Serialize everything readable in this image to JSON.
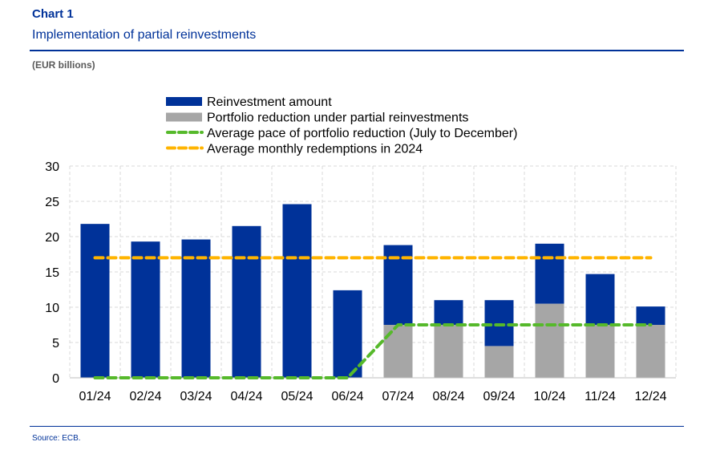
{
  "header": {
    "chart_label": "Chart 1",
    "title": "Implementation of partial reinvestments",
    "unit": "(EUR billions)"
  },
  "footer": {
    "source": "Source: ECB."
  },
  "colors": {
    "reinvestment": "#003299",
    "portfolio": "#A6A6A6",
    "avg_pace": "#56B92B",
    "avg_redemptions": "#FFB400",
    "grid": "#D9D9D9",
    "title": "#003299"
  },
  "chart_data": {
    "type": "bar",
    "stacked": true,
    "title": "Implementation of partial reinvestments",
    "ylabel": "(EUR billions)",
    "xlabel": "",
    "ylim": [
      0,
      30
    ],
    "yticks": [
      0,
      5,
      10,
      15,
      20,
      25,
      30
    ],
    "grid": true,
    "legend_position": "top",
    "categories": [
      "01/24",
      "02/24",
      "03/24",
      "04/24",
      "05/24",
      "06/24",
      "07/24",
      "08/24",
      "09/24",
      "10/24",
      "11/24",
      "12/24"
    ],
    "series": [
      {
        "name": "Portfolio reduction under partial reinvestments",
        "kind": "bar",
        "color": "#A6A6A6",
        "values": [
          0,
          0,
          0,
          0,
          0,
          0,
          7.5,
          7.5,
          4.5,
          10.5,
          7.5,
          7.5
        ]
      },
      {
        "name": "Reinvestment amount",
        "kind": "bar",
        "color": "#003299",
        "values": [
          21.8,
          19.3,
          19.6,
          21.5,
          24.6,
          12.4,
          11.3,
          3.5,
          6.5,
          8.5,
          7.2,
          2.6
        ]
      },
      {
        "name": "Average pace of portfolio reduction (July to December)",
        "kind": "line",
        "style": "dashed",
        "color": "#56B92B",
        "values": [
          0,
          0,
          0,
          0,
          0,
          0,
          7.5,
          7.5,
          7.5,
          7.5,
          7.5,
          7.5
        ]
      },
      {
        "name": "Average monthly redemptions in 2024",
        "kind": "line",
        "style": "dashed",
        "color": "#FFB400",
        "values": [
          17,
          17,
          17,
          17,
          17,
          17,
          17,
          17,
          17,
          17,
          17,
          17
        ]
      }
    ],
    "legend": [
      "Reinvestment amount",
      "Portfolio reduction under partial reinvestments",
      "Average pace of portfolio reduction (July to December)",
      "Average monthly redemptions in 2024"
    ]
  }
}
